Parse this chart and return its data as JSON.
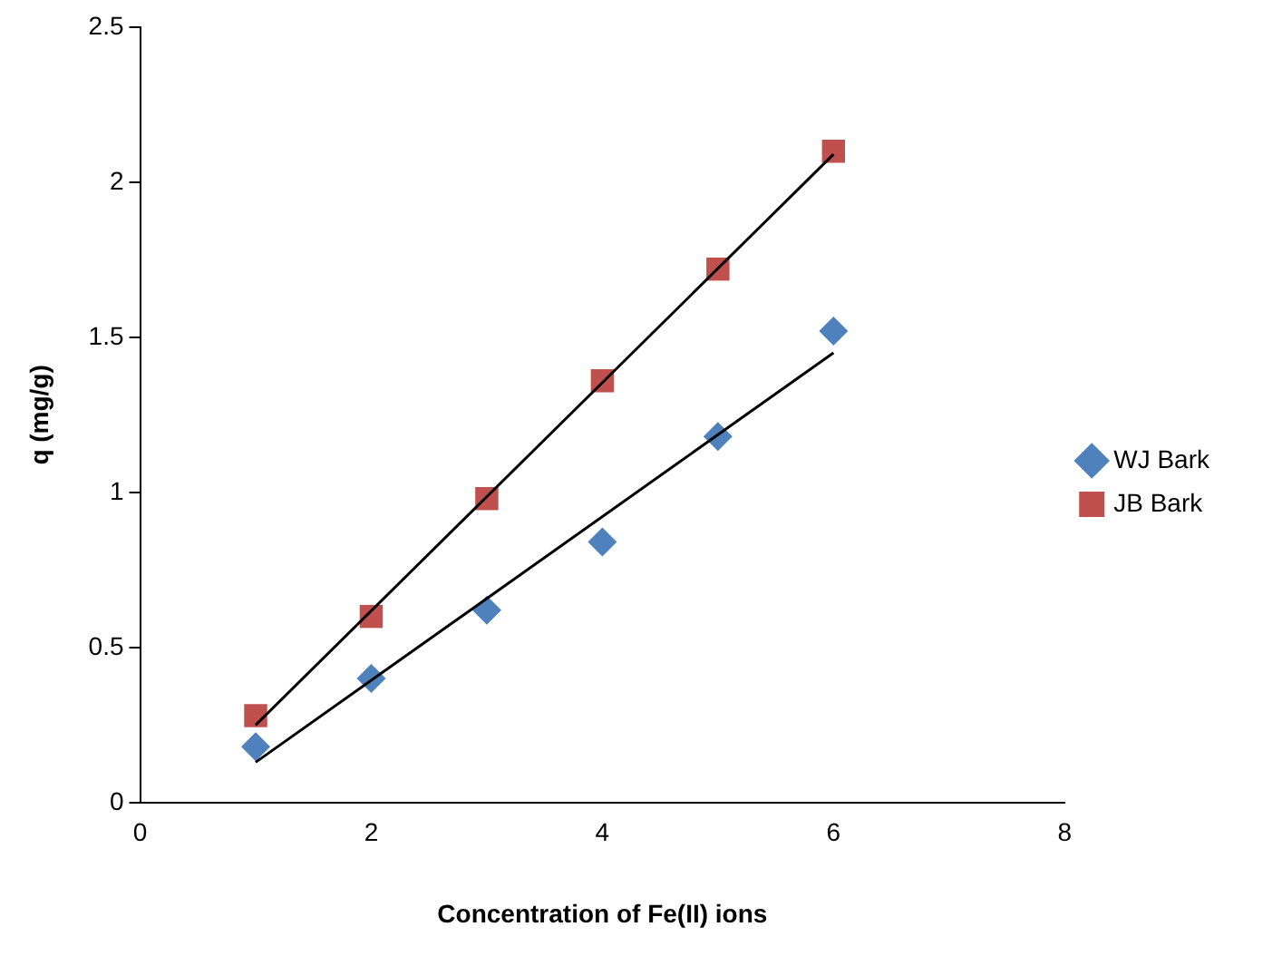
{
  "chart_data": {
    "type": "scatter",
    "xlabel": "Concentration of Fe(II) ions",
    "ylabel": "q (mg/g)",
    "xlim": [
      0,
      8
    ],
    "xticks": [
      0,
      2,
      4,
      6,
      8
    ],
    "ylim": [
      0,
      2.5
    ],
    "yticks": [
      0,
      0.5,
      1,
      1.5,
      2,
      2.5
    ],
    "grid": false,
    "legend": "right",
    "series": [
      {
        "name": "WJ Bark",
        "type": "scatter",
        "marker": "diamond",
        "color": "#4f81bd",
        "x": [
          1,
          2,
          3,
          4,
          5,
          6
        ],
        "values": [
          0.18,
          0.4,
          0.62,
          0.84,
          1.18,
          1.52
        ]
      },
      {
        "name": "JB Bark",
        "type": "scatter",
        "marker": "square",
        "color": "#c0504d",
        "x": [
          1,
          2,
          3,
          4,
          5,
          6
        ],
        "values": [
          0.28,
          0.6,
          0.98,
          1.36,
          1.72,
          2.1
        ]
      },
      {
        "type": "line",
        "marker": "none",
        "color": "#000000",
        "x": [
          1,
          6
        ],
        "values": [
          0.13,
          1.45
        ]
      },
      {
        "type": "line",
        "marker": "none",
        "color": "#000000",
        "x": [
          1,
          6
        ],
        "values": [
          0.25,
          2.09
        ]
      }
    ]
  }
}
